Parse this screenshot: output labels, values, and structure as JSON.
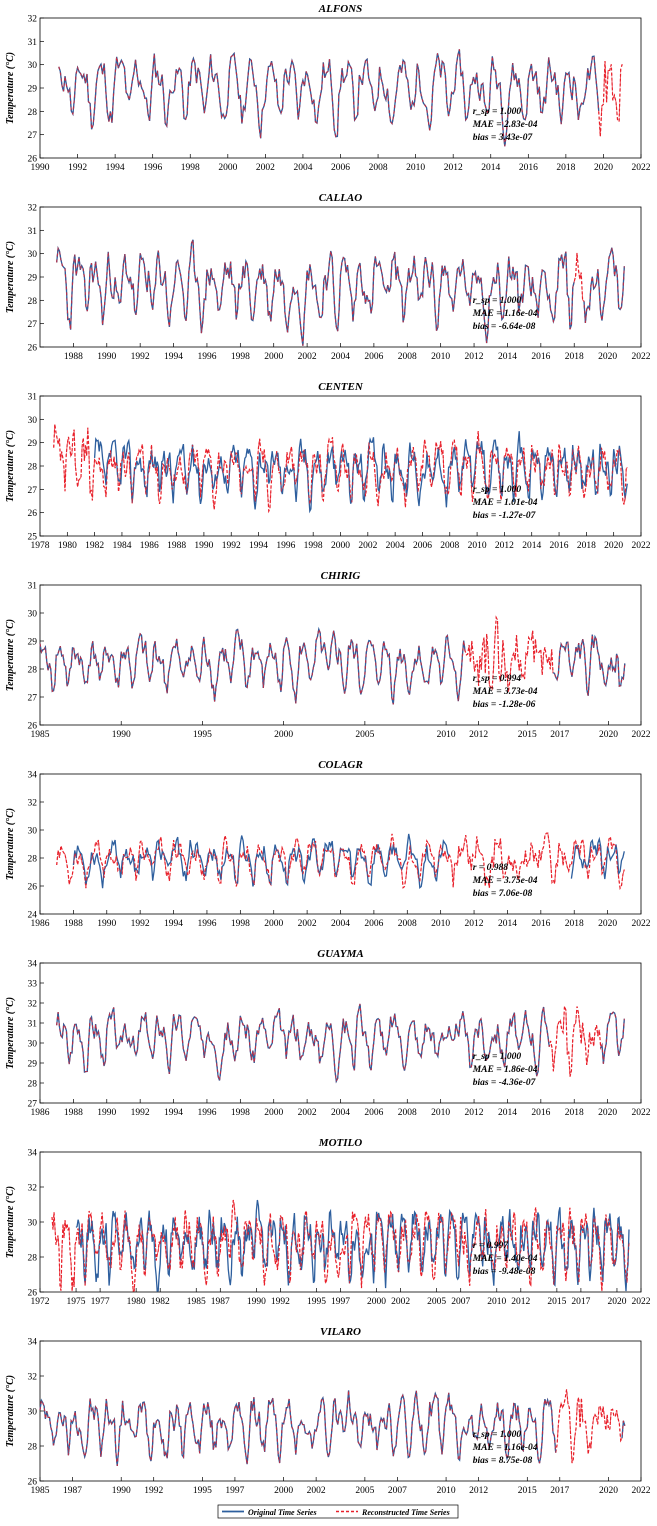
{
  "colors": {
    "original": "#2e5f9e",
    "reconstructed": "#e8202a",
    "axis": "#000000"
  },
  "legend": {
    "original_label": "Original Time Series",
    "reconstructed_label": "Reconstructed Time Series"
  },
  "chart_data": [
    {
      "type": "line",
      "title": "ALFONS",
      "ylabel": "Temperature (°C)",
      "xlabel": "",
      "xlim": [
        1990,
        2022
      ],
      "ylim": [
        26,
        32
      ],
      "xticks": [
        1990,
        1992,
        1994,
        1996,
        1998,
        2000,
        2002,
        2004,
        2006,
        2008,
        2010,
        2012,
        2014,
        2016,
        2018,
        2020,
        2022
      ],
      "yticks": [
        26,
        27,
        28,
        29,
        30,
        31,
        32
      ],
      "stats": [
        "r_sp = 1.000",
        "MAE = 2.83e-04",
        "bias = 3.43e-07"
      ],
      "series": [
        {
          "name": "Original Time Series",
          "start": 1991.0,
          "end": 2019.8,
          "base": 29.0,
          "amp": 1.3,
          "seed": 11
        },
        {
          "name": "Reconstructed Time Series",
          "start": 1991.0,
          "end": 2021.0,
          "base": 29.0,
          "amp": 1.3,
          "seed": 11,
          "gap_start": 2019.8,
          "gap_end": 2021.0
        }
      ]
    },
    {
      "type": "line",
      "title": "CALLAO",
      "ylabel": "Temperature (°C)",
      "xlabel": "",
      "xlim": [
        1986,
        2022
      ],
      "ylim": [
        26,
        32
      ],
      "xticks": [
        1988,
        1990,
        1992,
        1994,
        1996,
        1998,
        2000,
        2002,
        2004,
        2006,
        2008,
        2010,
        2012,
        2014,
        2016,
        2018,
        2020,
        2022
      ],
      "yticks": [
        26,
        27,
        28,
        29,
        30,
        31,
        32
      ],
      "stats": [
        "r_sp = 1.000",
        "MAE = 1.16e-04",
        "bias = -6.64e-08"
      ],
      "series": [
        {
          "name": "Original Time Series",
          "start": 1987.0,
          "end": 2021.0,
          "base": 28.6,
          "amp": 1.4,
          "seed": 23
        },
        {
          "name": "Reconstructed Time Series",
          "start": 1987.0,
          "end": 2021.0,
          "base": 28.6,
          "amp": 1.4,
          "seed": 23,
          "gap_start": 2018.0,
          "gap_end": 2018.5
        }
      ]
    },
    {
      "type": "line",
      "title": "CENTEN",
      "ylabel": "Temperature (°C)",
      "xlabel": "",
      "xlim": [
        1978,
        2022
      ],
      "ylim": [
        25,
        31
      ],
      "xticks": [
        1978,
        1980,
        1982,
        1984,
        1986,
        1988,
        1990,
        1992,
        1994,
        1996,
        1998,
        2000,
        2002,
        2004,
        2006,
        2008,
        2010,
        2012,
        2014,
        2016,
        2018,
        2020,
        2022
      ],
      "yticks": [
        25,
        26,
        27,
        28,
        29,
        30,
        31
      ],
      "stats": [
        "r_sp = 1.000",
        "MAE = 1.01e-04",
        "bias = -1.27e-07"
      ],
      "series": [
        {
          "name": "Original Time Series",
          "start": 1982.0,
          "end": 2021.0,
          "base": 27.9,
          "amp": 1.1,
          "seed": 37
        },
        {
          "name": "Reconstructed Time Series",
          "start": 1979.0,
          "end": 2021.0,
          "base": 27.9,
          "amp": 1.1,
          "seed": 37,
          "gap_start": 1979.0,
          "gap_end": 1982.0
        }
      ]
    },
    {
      "type": "line",
      "title": "CHIRIG",
      "ylabel": "Temperature (°C)",
      "xlabel": "",
      "xlim": [
        1985,
        2022
      ],
      "ylim": [
        26,
        31
      ],
      "xticks": [
        1985,
        1990,
        1995,
        2000,
        2005,
        2010,
        2012,
        2015,
        2017,
        2020,
        2022
      ],
      "yticks": [
        26,
        27,
        28,
        29,
        30,
        31
      ],
      "stats": [
        "r_sp = 0.994",
        "MAE = 3.73e-04",
        "bias = -1.28e-06"
      ],
      "series": [
        {
          "name": "Original Time Series",
          "start": 1985.0,
          "end": 2021.0,
          "base": 28.2,
          "amp": 0.9,
          "seed": 41
        },
        {
          "name": "Reconstructed Time Series",
          "start": 1985.0,
          "end": 2021.0,
          "base": 28.2,
          "amp": 0.9,
          "seed": 41,
          "gap_start": 2011.2,
          "gap_end": 2016.5
        }
      ]
    },
    {
      "type": "line",
      "title": "COLAGR",
      "ylabel": "Temperature (°C)",
      "xlabel": "",
      "xlim": [
        1986,
        2022
      ],
      "ylim": [
        24,
        34
      ],
      "xticks": [
        1986,
        1988,
        1990,
        1992,
        1994,
        1996,
        1998,
        2000,
        2002,
        2004,
        2006,
        2008,
        2010,
        2012,
        2014,
        2016,
        2018,
        2020,
        2022
      ],
      "yticks": [
        24,
        26,
        28,
        30,
        32,
        34
      ],
      "stats": [
        "r = 0.988",
        "MAE = 3.75e-04",
        "bias = 7.06e-08"
      ],
      "series": [
        {
          "name": "Original Time Series",
          "start": 1988.0,
          "end": 2021.0,
          "base": 27.9,
          "amp": 1.4,
          "seed": 53
        },
        {
          "name": "Reconstructed Time Series",
          "start": 1987.0,
          "end": 2021.0,
          "base": 27.9,
          "amp": 1.4,
          "seed": 53,
          "gap_start": 2010.5,
          "gap_end": 2017.8
        }
      ]
    },
    {
      "type": "line",
      "title": "GUAYMA",
      "ylabel": "Temperature (°C)",
      "xlabel": "",
      "xlim": [
        1986,
        2022
      ],
      "ylim": [
        27,
        34
      ],
      "xticks": [
        1986,
        1988,
        1990,
        1992,
        1994,
        1996,
        1998,
        2000,
        2002,
        2004,
        2006,
        2008,
        2010,
        2012,
        2014,
        2016,
        2018,
        2020,
        2022
      ],
      "yticks": [
        27,
        28,
        29,
        30,
        31,
        32,
        33,
        34
      ],
      "stats": [
        "r_sp = 1.000",
        "MAE = 1.86e-04",
        "bias = -4.36e-07"
      ],
      "series": [
        {
          "name": "Original Time Series",
          "start": 1987.0,
          "end": 2021.0,
          "base": 30.3,
          "amp": 1.2,
          "seed": 67
        },
        {
          "name": "Reconstructed Time Series",
          "start": 1987.0,
          "end": 2021.0,
          "base": 30.3,
          "amp": 1.2,
          "seed": 67,
          "gap_start": 2016.5,
          "gap_end": 2019.5
        }
      ]
    },
    {
      "type": "line",
      "title": "MOTILO",
      "ylabel": "Temperature (°C)",
      "xlabel": "",
      "xlim": [
        1972,
        2022
      ],
      "ylim": [
        26,
        34
      ],
      "xticks": [
        1972,
        1975,
        1977,
        1980,
        1982,
        1985,
        1987,
        1990,
        1992,
        1995,
        1997,
        2000,
        2002,
        2005,
        2007,
        2010,
        2012,
        2015,
        2017,
        2020,
        2022
      ],
      "yticks": [
        26,
        28,
        30,
        32,
        34
      ],
      "stats": [
        "r = 0.997",
        "MAE = 1.40e-04",
        "bias = -9.48e-08"
      ],
      "series": [
        {
          "name": "Original Time Series",
          "start": 1975.0,
          "end": 2021.0,
          "base": 28.8,
          "amp": 1.7,
          "seed": 79
        },
        {
          "name": "Reconstructed Time Series",
          "start": 1973.0,
          "end": 2021.0,
          "base": 28.8,
          "amp": 1.7,
          "seed": 79,
          "gap_start": 1973.0,
          "gap_end": 1975.0
        }
      ]
    },
    {
      "type": "line",
      "title": "VILARO",
      "ylabel": "Temperature (°C)",
      "xlabel": "",
      "xlim": [
        1985,
        2022
      ],
      "ylim": [
        26,
        34
      ],
      "xticks": [
        1985,
        1987,
        1990,
        1992,
        1995,
        1997,
        2000,
        2002,
        2005,
        2007,
        2010,
        2012,
        2015,
        2017,
        2020,
        2022
      ],
      "yticks": [
        26,
        28,
        30,
        32,
        34
      ],
      "stats": [
        "r_sp = 1.000",
        "MAE = 1.16e-04",
        "bias = 8.75e-08"
      ],
      "series": [
        {
          "name": "Original Time Series",
          "start": 1985.0,
          "end": 2021.0,
          "base": 29.2,
          "amp": 1.5,
          "seed": 97
        },
        {
          "name": "Reconstructed Time Series",
          "start": 1985.0,
          "end": 2021.0,
          "base": 29.2,
          "amp": 1.5,
          "seed": 97,
          "gap_start": 2016.8,
          "gap_end": 2020.8
        }
      ]
    }
  ]
}
